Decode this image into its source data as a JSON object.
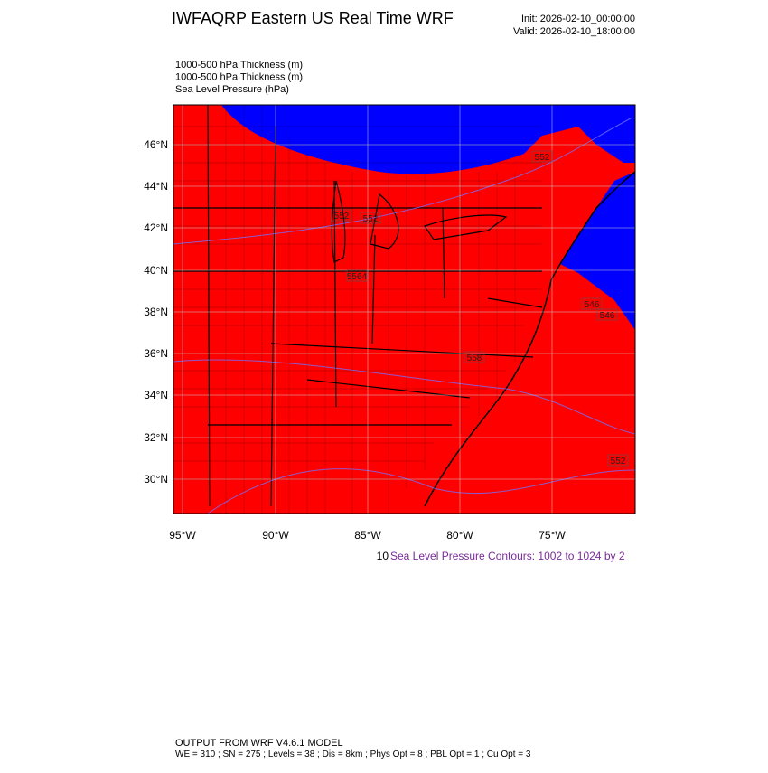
{
  "header": {
    "title": "IWFAQRP Eastern US Real Time WRF",
    "init": "Init: 2026-02-10_00:00:00",
    "valid": "Valid: 2026-02-10_18:00:00"
  },
  "fields": [
    "1000-500 hPa Thickness   (m)",
    "1000-500 hPa Thickness   (m)",
    "Sea Level Pressure   (hPa)"
  ],
  "map": {
    "lat_labels": [
      "46°N",
      "44°N",
      "42°N",
      "40°N",
      "38°N",
      "36°N",
      "34°N",
      "32°N",
      "30°N"
    ],
    "lon_labels": [
      "95°W",
      "90°W",
      "85°W",
      "80°W",
      "75°W"
    ],
    "contour_labels": [
      "552",
      "552",
      "5564",
      "558",
      "546",
      "546",
      "552",
      "552"
    ]
  },
  "contour_info": {
    "prefix": "10",
    "text": "Sea Level Pressure Contours: 1002 to 1024 by 2"
  },
  "footer": {
    "line1": "OUTPUT FROM WRF V4.6.1 MODEL",
    "line2": "WE = 310 ; SN = 275 ; Levels = 38 ; Dis = 8km ; Phys Opt = 8 ; PBL Opt = 1 ; Cu Opt = 3"
  }
}
